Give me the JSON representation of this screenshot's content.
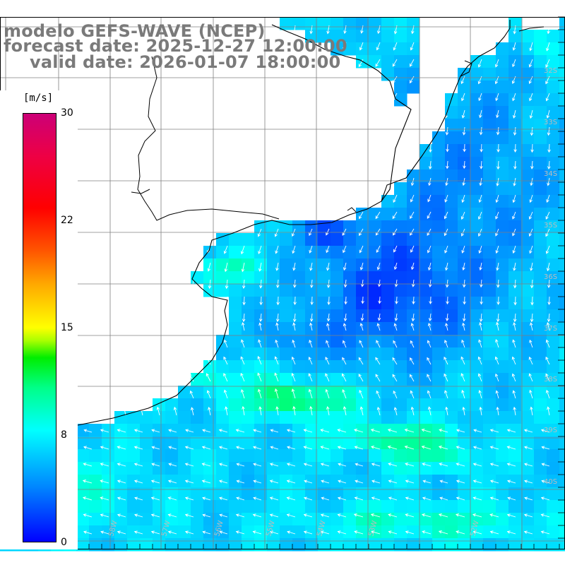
{
  "titles": {
    "model": "modelo GEFS-WAVE (NCEP)",
    "forecast": "forecast date: 2025-12-27 12:00:00",
    "valid": "valid date: 2026-01-07 18:00:00"
  },
  "colorbar": {
    "units": "[m/s]",
    "ticks": [
      "30",
      "22",
      "15",
      "8",
      "0"
    ],
    "tick_values": [
      30,
      22,
      15,
      8,
      0
    ],
    "range": [
      0,
      30
    ]
  },
  "map": {
    "lat_labels": [
      "32S",
      "33S",
      "34S",
      "35S",
      "36S",
      "37S",
      "38S",
      "39S",
      "40S"
    ],
    "lon_labels": [
      "59W",
      "58W",
      "57W",
      "56W",
      "55W",
      "54W",
      "53W",
      "52W"
    ],
    "colors": {
      "coast": "#000000",
      "grid": "#808080",
      "arrows": "#ffffff",
      "label": "#bcbcbc"
    }
  }
}
